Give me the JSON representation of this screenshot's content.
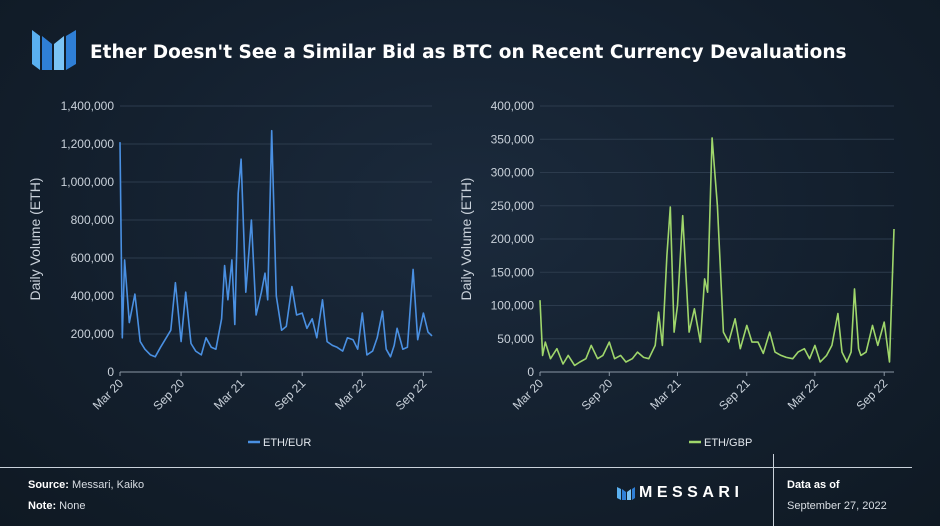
{
  "header": {
    "title": "Ether Doesn't See a Similar Bid as BTC on Recent Currency Devaluations",
    "logo_icon": "messari-logo-icon"
  },
  "footer": {
    "source_label": "Source:",
    "source_value": "Messari, Kaiko",
    "note_label": "Note:",
    "note_value": "None",
    "brand": "MESSARI",
    "data_as_of_label": "Data as of",
    "data_as_of_date": "September 27, 2022"
  },
  "colors": {
    "eur_series": "#4a90e2",
    "gbp_series": "#9fd66b",
    "background": "#152232",
    "axis_text": "#c9d1da"
  },
  "chart_data": [
    {
      "type": "line",
      "title": "",
      "xlabel": "",
      "ylabel": "Daily Volume (ETH)",
      "ylim": [
        0,
        1400000
      ],
      "yticks": [
        0,
        200000,
        400000,
        600000,
        800000,
        1000000,
        1200000,
        1400000
      ],
      "ytick_labels": [
        "0",
        "200,000",
        "400,000",
        "600,000",
        "800,000",
        "1,000,000",
        "1,200,000",
        "1,400,000"
      ],
      "xlim": [
        "2020-03-01",
        "2022-09-27"
      ],
      "xtick_labels": [
        "Mar 20",
        "Sep 20",
        "Mar 21",
        "Sep 21",
        "Mar 22",
        "Sep 22"
      ],
      "xtick_dates": [
        "2020-03-01",
        "2020-09-01",
        "2021-03-01",
        "2021-09-01",
        "2022-03-01",
        "2022-09-01"
      ],
      "grid": true,
      "legend": "bottom-center",
      "series": [
        {
          "name": "ETH/EUR",
          "x": [
            "2020-03-01",
            "2020-03-08",
            "2020-03-15",
            "2020-03-29",
            "2020-04-15",
            "2020-05-01",
            "2020-05-15",
            "2020-06-01",
            "2020-06-15",
            "2020-07-01",
            "2020-07-15",
            "2020-08-01",
            "2020-08-15",
            "2020-09-01",
            "2020-09-15",
            "2020-10-01",
            "2020-10-15",
            "2020-11-01",
            "2020-11-15",
            "2020-12-01",
            "2020-12-15",
            "2021-01-01",
            "2021-01-10",
            "2021-01-20",
            "2021-02-01",
            "2021-02-10",
            "2021-02-20",
            "2021-03-01",
            "2021-03-15",
            "2021-04-01",
            "2021-04-15",
            "2021-05-01",
            "2021-05-12",
            "2021-05-20",
            "2021-06-01",
            "2021-06-15",
            "2021-07-01",
            "2021-07-15",
            "2021-08-01",
            "2021-08-15",
            "2021-09-01",
            "2021-09-15",
            "2021-10-01",
            "2021-10-15",
            "2021-11-01",
            "2021-11-15",
            "2021-12-01",
            "2021-12-15",
            "2022-01-01",
            "2022-01-15",
            "2022-02-01",
            "2022-02-15",
            "2022-03-01",
            "2022-03-15",
            "2022-04-01",
            "2022-04-15",
            "2022-05-01",
            "2022-05-12",
            "2022-05-25",
            "2022-06-05",
            "2022-06-14",
            "2022-06-25",
            "2022-07-01",
            "2022-07-15",
            "2022-08-01",
            "2022-08-15",
            "2022-09-01",
            "2022-09-15",
            "2022-09-27"
          ],
          "values": [
            1210000,
            180000,
            590000,
            260000,
            410000,
            160000,
            120000,
            90000,
            80000,
            130000,
            170000,
            220000,
            470000,
            160000,
            420000,
            150000,
            110000,
            90000,
            180000,
            130000,
            120000,
            280000,
            560000,
            380000,
            590000,
            250000,
            940000,
            1120000,
            420000,
            800000,
            300000,
            420000,
            520000,
            380000,
            1270000,
            400000,
            220000,
            240000,
            450000,
            300000,
            310000,
            230000,
            280000,
            180000,
            380000,
            160000,
            140000,
            130000,
            110000,
            180000,
            170000,
            120000,
            310000,
            90000,
            110000,
            180000,
            320000,
            120000,
            80000,
            140000,
            230000,
            160000,
            120000,
            130000,
            540000,
            170000,
            310000,
            210000,
            190000
          ]
        }
      ]
    },
    {
      "type": "line",
      "title": "",
      "xlabel": "",
      "ylabel": "Daily Volume (ETH)",
      "ylim": [
        0,
        400000
      ],
      "yticks": [
        0,
        50000,
        100000,
        150000,
        200000,
        250000,
        300000,
        350000,
        400000
      ],
      "ytick_labels": [
        "0",
        "50,000",
        "100,000",
        "150,000",
        "200,000",
        "250,000",
        "300,000",
        "350,000",
        "400,000"
      ],
      "xlim": [
        "2020-03-01",
        "2022-09-27"
      ],
      "xtick_labels": [
        "Mar 20",
        "Sep 20",
        "Mar 21",
        "Sep 21",
        "Mar 22",
        "Sep 22"
      ],
      "xtick_dates": [
        "2020-03-01",
        "2020-09-01",
        "2021-03-01",
        "2021-09-01",
        "2022-03-01",
        "2022-09-01"
      ],
      "grid": true,
      "legend": "bottom-center",
      "series": [
        {
          "name": "ETH/GBP",
          "x": [
            "2020-03-01",
            "2020-03-08",
            "2020-03-15",
            "2020-03-29",
            "2020-04-15",
            "2020-05-01",
            "2020-05-15",
            "2020-06-01",
            "2020-06-15",
            "2020-07-01",
            "2020-07-15",
            "2020-08-01",
            "2020-08-15",
            "2020-09-01",
            "2020-09-15",
            "2020-10-01",
            "2020-10-15",
            "2020-11-01",
            "2020-11-15",
            "2020-12-01",
            "2020-12-15",
            "2021-01-01",
            "2021-01-10",
            "2021-01-20",
            "2021-02-01",
            "2021-02-10",
            "2021-02-20",
            "2021-03-01",
            "2021-03-15",
            "2021-04-01",
            "2021-04-15",
            "2021-05-01",
            "2021-05-12",
            "2021-05-20",
            "2021-06-01",
            "2021-06-15",
            "2021-07-01",
            "2021-07-15",
            "2021-08-01",
            "2021-08-15",
            "2021-09-01",
            "2021-09-15",
            "2021-10-01",
            "2021-10-15",
            "2021-11-01",
            "2021-11-15",
            "2021-12-01",
            "2021-12-15",
            "2022-01-01",
            "2022-01-15",
            "2022-02-01",
            "2022-02-15",
            "2022-03-01",
            "2022-03-15",
            "2022-04-01",
            "2022-04-15",
            "2022-05-01",
            "2022-05-12",
            "2022-05-25",
            "2022-06-05",
            "2022-06-14",
            "2022-06-25",
            "2022-07-01",
            "2022-07-15",
            "2022-08-01",
            "2022-08-15",
            "2022-09-01",
            "2022-09-15",
            "2022-09-27"
          ],
          "values": [
            108000,
            25000,
            45000,
            20000,
            35000,
            12000,
            25000,
            10000,
            15000,
            20000,
            40000,
            20000,
            25000,
            45000,
            20000,
            25000,
            15000,
            20000,
            30000,
            22000,
            20000,
            40000,
            90000,
            40000,
            175000,
            248000,
            60000,
            100000,
            235000,
            60000,
            95000,
            45000,
            140000,
            120000,
            352000,
            250000,
            60000,
            45000,
            80000,
            35000,
            70000,
            45000,
            45000,
            28000,
            60000,
            30000,
            25000,
            22000,
            20000,
            30000,
            35000,
            20000,
            40000,
            15000,
            25000,
            40000,
            88000,
            30000,
            15000,
            30000,
            125000,
            35000,
            25000,
            30000,
            70000,
            40000,
            75000,
            15000,
            215000
          ]
        }
      ]
    }
  ]
}
